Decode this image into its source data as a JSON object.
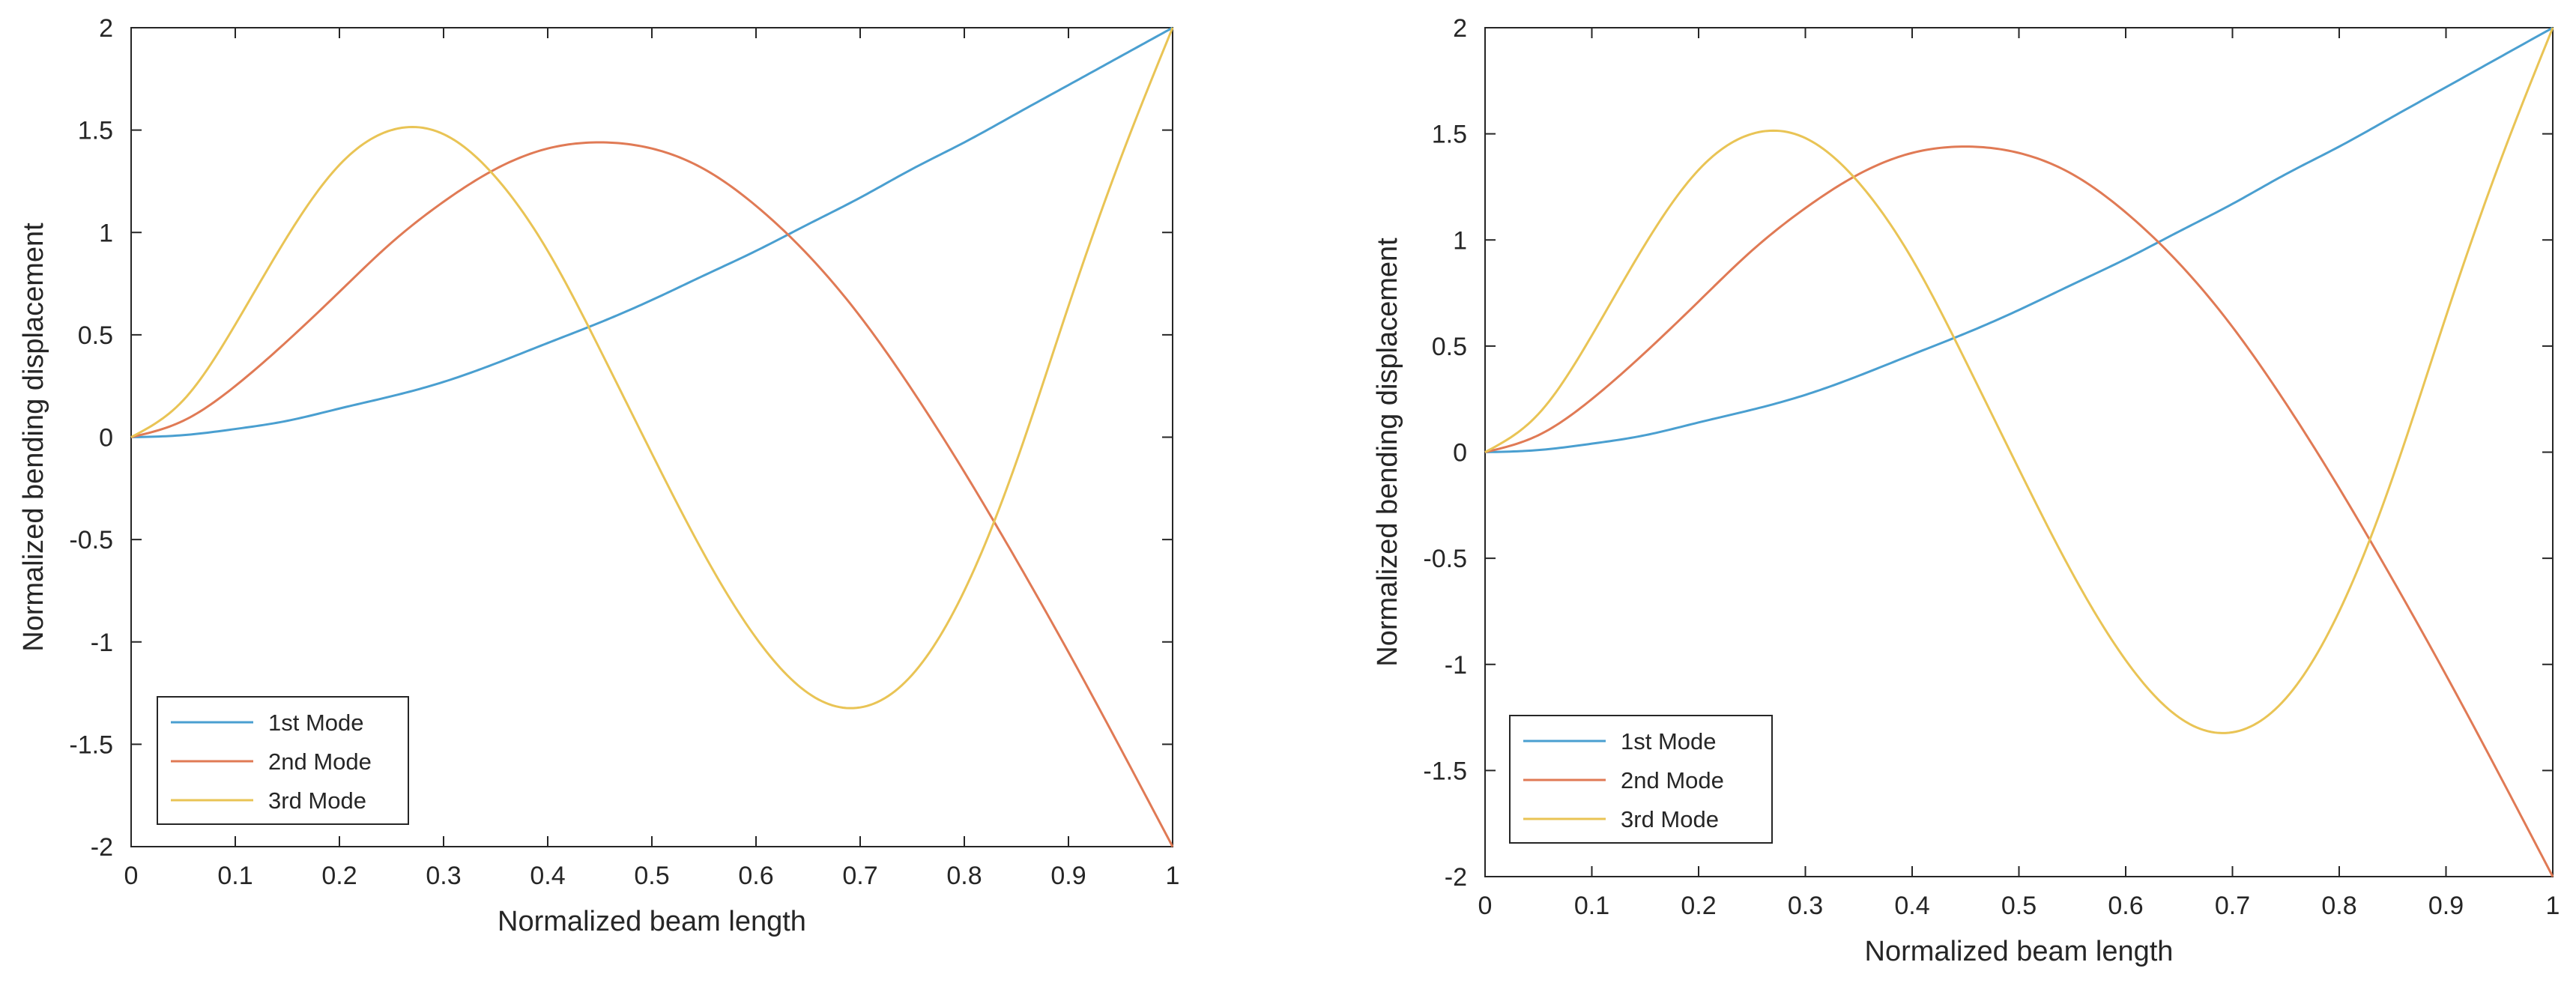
{
  "chart_data": [
    {
      "type": "line",
      "title": "",
      "xlabel": "Normalized beam length",
      "ylabel": "Normalized bending displacement",
      "xlim": [
        0,
        1
      ],
      "ylim": [
        -2,
        2
      ],
      "xticks": [
        "0",
        "0.1",
        "0.2",
        "0.3",
        "0.4",
        "0.5",
        "0.6",
        "0.7",
        "0.8",
        "0.9",
        "1"
      ],
      "yticks": [
        "-2",
        "-1.5",
        "-1",
        "-0.5",
        "0",
        "0.5",
        "1",
        "1.5",
        "2"
      ],
      "grid": false,
      "legend_position": "bottom-left",
      "x": [
        0,
        0.05,
        0.1,
        0.15,
        0.2,
        0.25,
        0.3,
        0.35,
        0.4,
        0.45,
        0.5,
        0.55,
        0.6,
        0.65,
        0.7,
        0.75,
        0.8,
        0.85,
        0.9,
        0.95,
        1
      ],
      "series": [
        {
          "name": "1st Mode",
          "color": "#4a9fd0",
          "values": [
            0,
            0.01,
            0.04,
            0.08,
            0.14,
            0.2,
            0.27,
            0.36,
            0.46,
            0.56,
            0.67,
            0.79,
            0.91,
            1.04,
            1.17,
            1.31,
            1.44,
            1.58,
            1.72,
            1.86,
            2.0
          ]
        },
        {
          "name": "2nd Mode",
          "color": "#e07a55",
          "values": [
            0,
            0.08,
            0.25,
            0.47,
            0.71,
            0.95,
            1.15,
            1.31,
            1.41,
            1.44,
            1.41,
            1.31,
            1.13,
            0.89,
            0.59,
            0.23,
            -0.17,
            -0.6,
            -1.05,
            -1.52,
            -2.0
          ]
        },
        {
          "name": "3rd Mode",
          "color": "#e9c455",
          "values": [
            0,
            0.18,
            0.55,
            0.98,
            1.33,
            1.5,
            1.48,
            1.27,
            0.91,
            0.43,
            -0.08,
            -0.57,
            -0.98,
            -1.25,
            -1.32,
            -1.16,
            -0.75,
            -0.12,
            0.64,
            1.36,
            2.0
          ]
        }
      ]
    },
    {
      "type": "line",
      "title": "",
      "xlabel": "Normalized beam length",
      "ylabel": "Normalized bending displacement",
      "xlim": [
        0,
        1
      ],
      "ylim": [
        -2,
        2
      ],
      "xticks": [
        "0",
        "0.1",
        "0.2",
        "0.3",
        "0.4",
        "0.5",
        "0.6",
        "0.7",
        "0.8",
        "0.9",
        "1"
      ],
      "yticks": [
        "-2",
        "-1.5",
        "-1",
        "-0.5",
        "0",
        "0.5",
        "1",
        "1.5",
        "2"
      ],
      "grid": false,
      "legend_position": "bottom-left",
      "x": [
        0,
        0.05,
        0.1,
        0.15,
        0.2,
        0.25,
        0.3,
        0.35,
        0.4,
        0.45,
        0.5,
        0.55,
        0.6,
        0.65,
        0.7,
        0.75,
        0.8,
        0.85,
        0.9,
        0.95,
        1
      ],
      "series": [
        {
          "name": "1st Mode",
          "color": "#4a9fd0",
          "values": [
            0,
            0.01,
            0.04,
            0.08,
            0.14,
            0.2,
            0.27,
            0.36,
            0.46,
            0.56,
            0.67,
            0.79,
            0.91,
            1.04,
            1.17,
            1.31,
            1.44,
            1.58,
            1.72,
            1.86,
            2.0
          ]
        },
        {
          "name": "2nd Mode",
          "color": "#e07a55",
          "values": [
            0,
            0.08,
            0.25,
            0.47,
            0.71,
            0.95,
            1.15,
            1.31,
            1.41,
            1.44,
            1.41,
            1.31,
            1.13,
            0.89,
            0.59,
            0.23,
            -0.17,
            -0.6,
            -1.05,
            -1.52,
            -2.0
          ]
        },
        {
          "name": "3rd Mode",
          "color": "#e9c455",
          "values": [
            0,
            0.18,
            0.55,
            0.98,
            1.33,
            1.5,
            1.48,
            1.27,
            0.91,
            0.43,
            -0.08,
            -0.57,
            -0.98,
            -1.25,
            -1.32,
            -1.16,
            -0.75,
            -0.12,
            0.64,
            1.36,
            2.0
          ]
        }
      ]
    }
  ]
}
